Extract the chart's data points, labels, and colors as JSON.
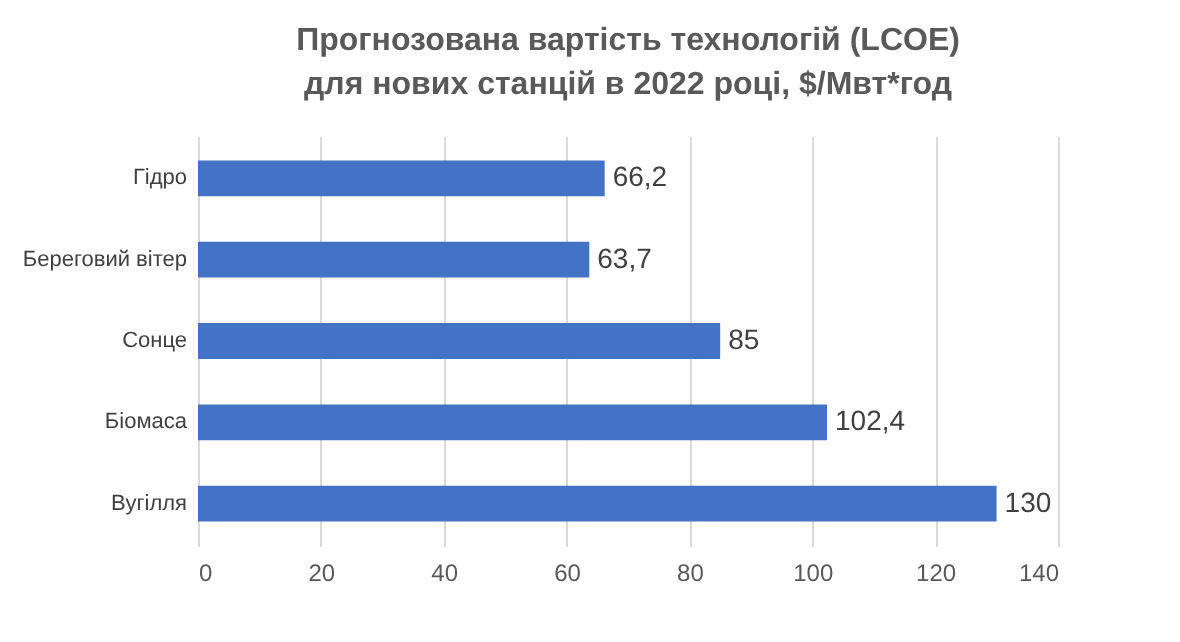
{
  "chart_data": {
    "type": "bar",
    "orientation": "horizontal",
    "title": "Прогнозована вартість технологій (LCOE)\nдля нових станцій в 2022 році, $/Мвт*год",
    "categories": [
      "Гідро",
      "Береговий вітер",
      "Сонце",
      "Біомаса",
      "Вугілля"
    ],
    "values": [
      66.2,
      63.7,
      85,
      102.4,
      130
    ],
    "value_labels": [
      "66,2",
      "63,7",
      "85",
      "102,4",
      "130"
    ],
    "color": "#4472c4",
    "xlim": [
      0,
      140
    ],
    "xticks": [
      0,
      20,
      40,
      60,
      80,
      100,
      120,
      140
    ],
    "grid": "x"
  }
}
